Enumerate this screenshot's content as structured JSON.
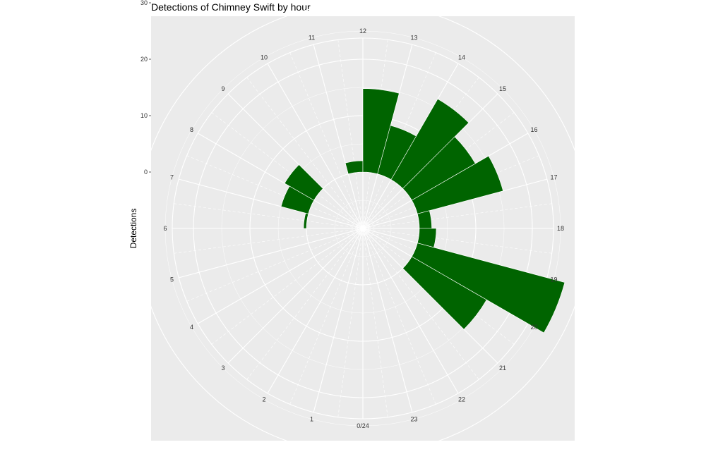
{
  "chart_data": {
    "type": "bar",
    "subtype": "polar",
    "title": "Detections of Chimney Swift by hour",
    "xlabel": "",
    "ylabel": "Detections",
    "ylim": [
      -10,
      33
    ],
    "yticks": [
      0,
      10,
      20,
      30
    ],
    "hour_labels": [
      "0/24",
      "1",
      "2",
      "3",
      "4",
      "5",
      "6",
      "7",
      "8",
      "9",
      "10",
      "11",
      "12",
      "13",
      "14",
      "15",
      "16",
      "17",
      "18",
      "19",
      "20",
      "21",
      "22",
      "23"
    ],
    "categories": [
      0,
      1,
      2,
      3,
      4,
      5,
      6,
      7,
      8,
      9,
      10,
      11,
      12,
      13,
      14,
      15,
      16,
      17,
      18,
      19,
      20,
      21,
      22,
      23
    ],
    "values": [
      0,
      0,
      0,
      0,
      0,
      0,
      0.5,
      5,
      6,
      0,
      0,
      2,
      14.8,
      8.9,
      16.5,
      13,
      15.7,
      2.2,
      3,
      27,
      15.3,
      0,
      0,
      0
    ],
    "bar_color": "#006400",
    "panel_color": "#ebebeb",
    "grid_color": "#ffffff",
    "grid": true,
    "legend": "none"
  }
}
